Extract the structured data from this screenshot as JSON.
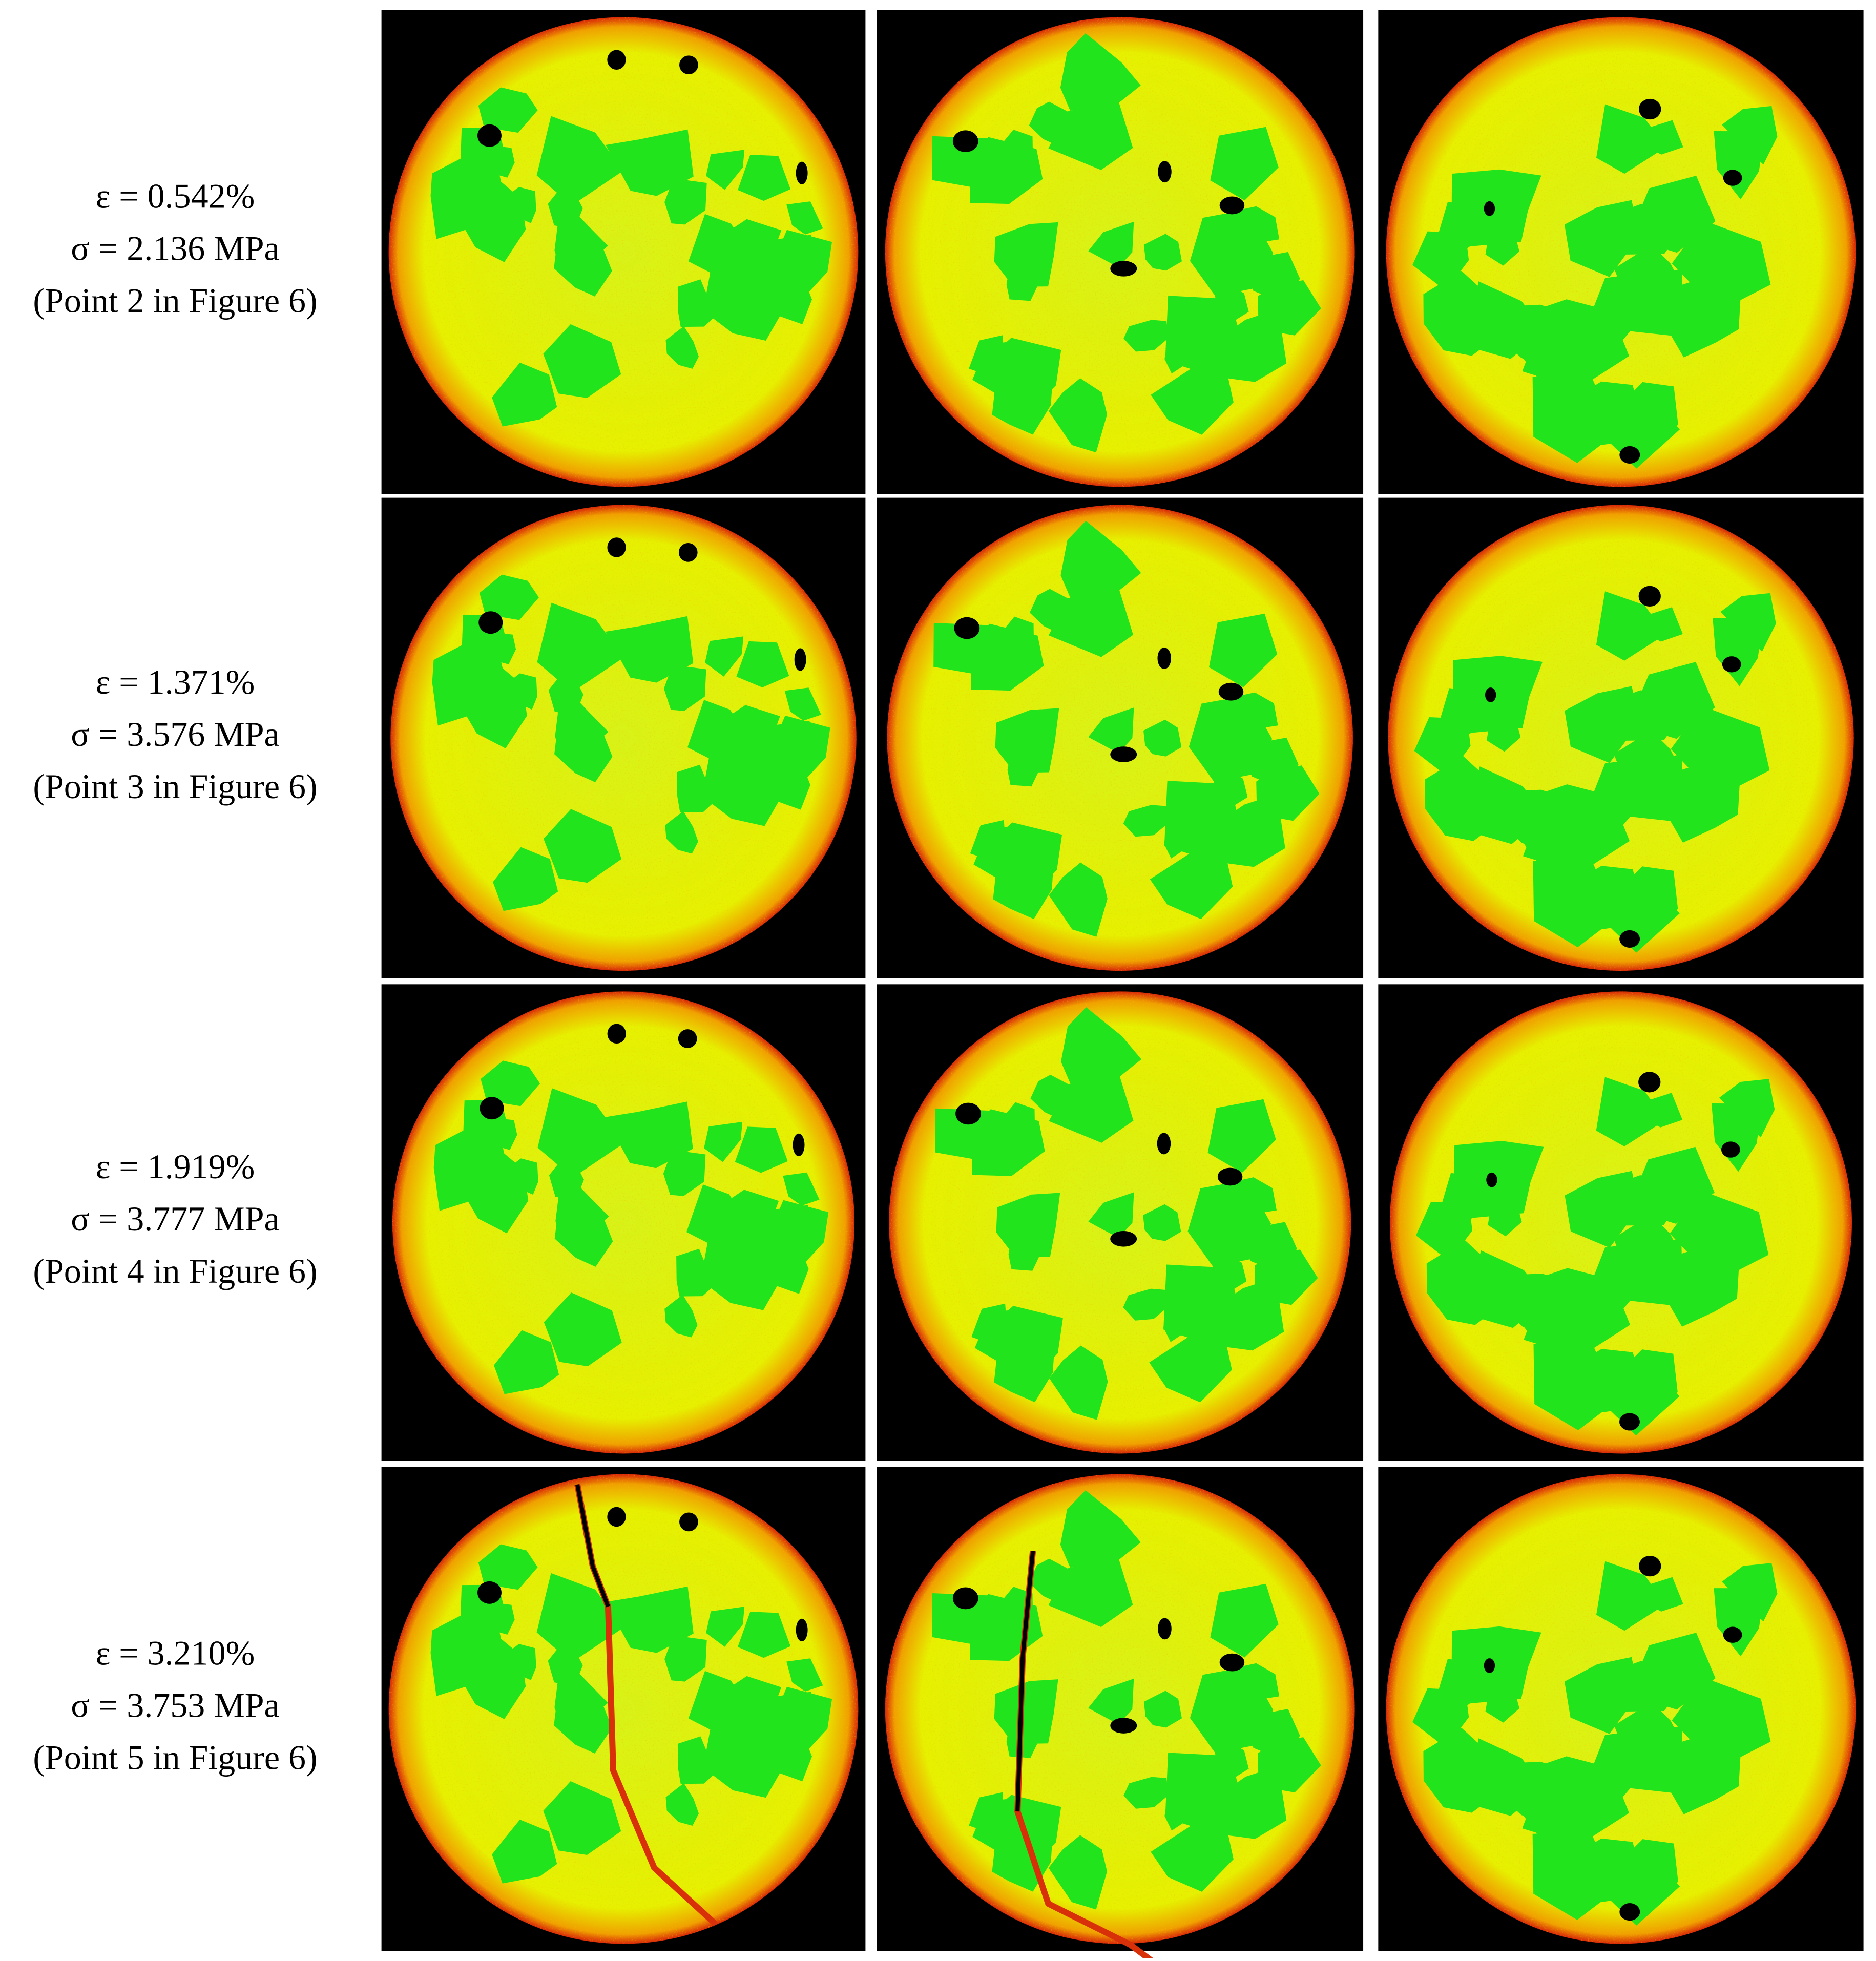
{
  "rows": [
    {
      "strain": "ε = 0.542%",
      "stress": "σ = 2.136 MPa",
      "note": "(Point 2 in Figure 6)"
    },
    {
      "strain": "ε = 1.371%",
      "stress": "σ = 3.576 MPa",
      "note": "(Point 3 in Figure 6)"
    },
    {
      "strain": "ε = 1.919%",
      "stress": "σ = 3.777 MPa",
      "note": "(Point 4 in Figure 6)"
    },
    {
      "strain": "ε = 3.210%",
      "stress": "σ = 3.753 MPa",
      "note": "(Point 5 in Figure 6)"
    }
  ]
}
